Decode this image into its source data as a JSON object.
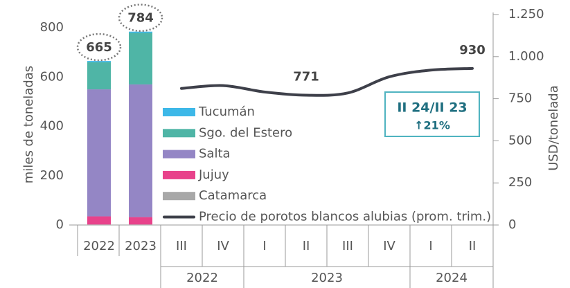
{
  "chart_data": {
    "type": "bar",
    "categories": [
      "2022",
      "2023"
    ],
    "y_label": "miles de toneladas",
    "y2_label": "USD/tonelada",
    "ylim": [
      0,
      800
    ],
    "yticks": [
      0,
      200,
      400,
      600,
      800
    ],
    "y2lim": [
      0,
      1250
    ],
    "y2ticks": [
      0,
      250,
      500,
      750,
      {
        "value": 1000,
        "label": "1.000"
      },
      {
        "value": 1250,
        "label": "1.250"
      }
    ],
    "stacked": true,
    "series": [
      {
        "name": "Tucumán",
        "color": "#3db8e8",
        "values": [
          5,
          5
        ]
      },
      {
        "name": "Sgo. del Estero",
        "color": "#4fb5a6",
        "values": [
          110,
          209
        ]
      },
      {
        "name": "Salta",
        "color": "#9486c5",
        "values": [
          515,
          538
        ]
      },
      {
        "name": "Jujuy",
        "color": "#e8428b",
        "values": [
          33,
          30
        ]
      },
      {
        "name": "Catamarca",
        "color": "#a8a8a8",
        "values": [
          2,
          2
        ]
      },
      {
        "name": "Precio de porotos blancos alubias (prom. trim.)",
        "color": "#3e404a",
        "type": "line",
        "axis": "y2",
        "x": [
          "III",
          "IV",
          "I",
          "II",
          "III",
          "IV",
          "I",
          "II"
        ],
        "values": [
          811,
          828,
          790,
          771,
          784,
          880,
          920,
          930
        ],
        "value_labels": [
          null,
          null,
          null,
          "771",
          null,
          null,
          null,
          "930"
        ]
      }
    ],
    "totals": [
      665,
      784
    ],
    "year_groups": [
      "2022",
      "2023",
      "2024"
    ],
    "annotation": {
      "title": "II 24/II 23",
      "change": "↑21%"
    }
  }
}
